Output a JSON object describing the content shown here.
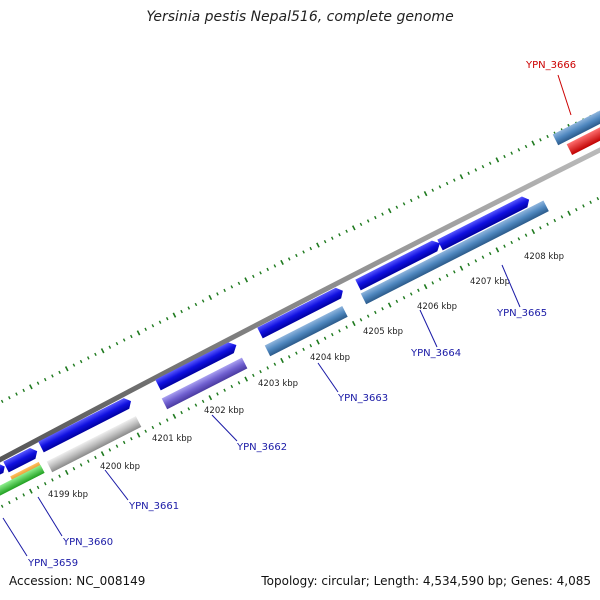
{
  "title": "Yersinia pestis Nepal516, complete genome",
  "footer": {
    "accession": "Accession: NC_008149",
    "summary": "Topology: circular; Length: 4,534,590 bp; Genes: 4,085"
  },
  "colors": {
    "backbone": "#888888",
    "tick": "#1f7a1f",
    "kbp_label": "#222222",
    "gene_label": "#1a1aa6",
    "highlight_label": "#cc0000"
  },
  "kbp_labels": [
    "4199 kbp",
    "4200 kbp",
    "4201 kbp",
    "4202 kbp",
    "4203 kbp",
    "4204 kbp",
    "4205 kbp",
    "4206 kbp",
    "4207 kbp",
    "4208 kbp"
  ],
  "gene_labels": [
    {
      "text": "YPN_3659",
      "color": "#1a1aa6"
    },
    {
      "text": "YPN_3660",
      "color": "#1a1aa6"
    },
    {
      "text": "YPN_3661",
      "color": "#1a1aa6"
    },
    {
      "text": "YPN_3662",
      "color": "#1a1aa6"
    },
    {
      "text": "YPN_3663",
      "color": "#1a1aa6"
    },
    {
      "text": "YPN_3664",
      "color": "#1a1aa6"
    },
    {
      "text": "YPN_3665",
      "color": "#1a1aa6"
    },
    {
      "text": "YPN_3666",
      "color": "#cc0000"
    }
  ],
  "feature_colors": {
    "cds_blue": "#1010e0",
    "steel": "#4f87bf",
    "purple": "#7060d0",
    "grey": "#c0c0c0",
    "orange": "#f08a00",
    "green": "#3cc83c",
    "red": "#ee1010"
  }
}
